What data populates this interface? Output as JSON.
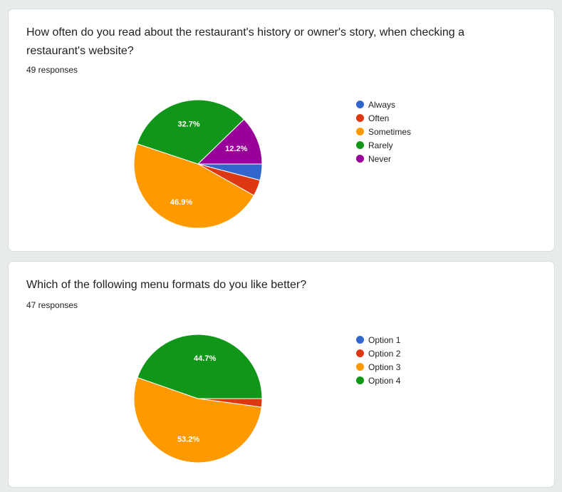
{
  "cards": [
    {
      "question": "How often do you read about the restaurant's history or owner's story, when checking a restaurant's website?",
      "responses": "49 responses"
    },
    {
      "question": "Which of the following menu formats do you like better?",
      "responses": "47 responses"
    }
  ],
  "chart_data": [
    {
      "type": "pie",
      "categories": [
        "Always",
        "Often",
        "Sometimes",
        "Rarely",
        "Never"
      ],
      "values": [
        2,
        2,
        23,
        16,
        6
      ],
      "percent_labels": [
        "",
        "",
        "46.9%",
        "32.7%",
        "12.2%"
      ],
      "colors": [
        "#3366cc",
        "#dc3912",
        "#ff9900",
        "#109618",
        "#990099"
      ],
      "legend_position": "right"
    },
    {
      "type": "pie",
      "categories": [
        "Option 1",
        "Option 2",
        "Option 3",
        "Option 4"
      ],
      "values": [
        0,
        1,
        25,
        21
      ],
      "percent_labels": [
        "",
        "",
        "53.2%",
        "44.7%"
      ],
      "colors": [
        "#3366cc",
        "#dc3912",
        "#ff9900",
        "#109618"
      ],
      "legend_position": "right"
    }
  ]
}
